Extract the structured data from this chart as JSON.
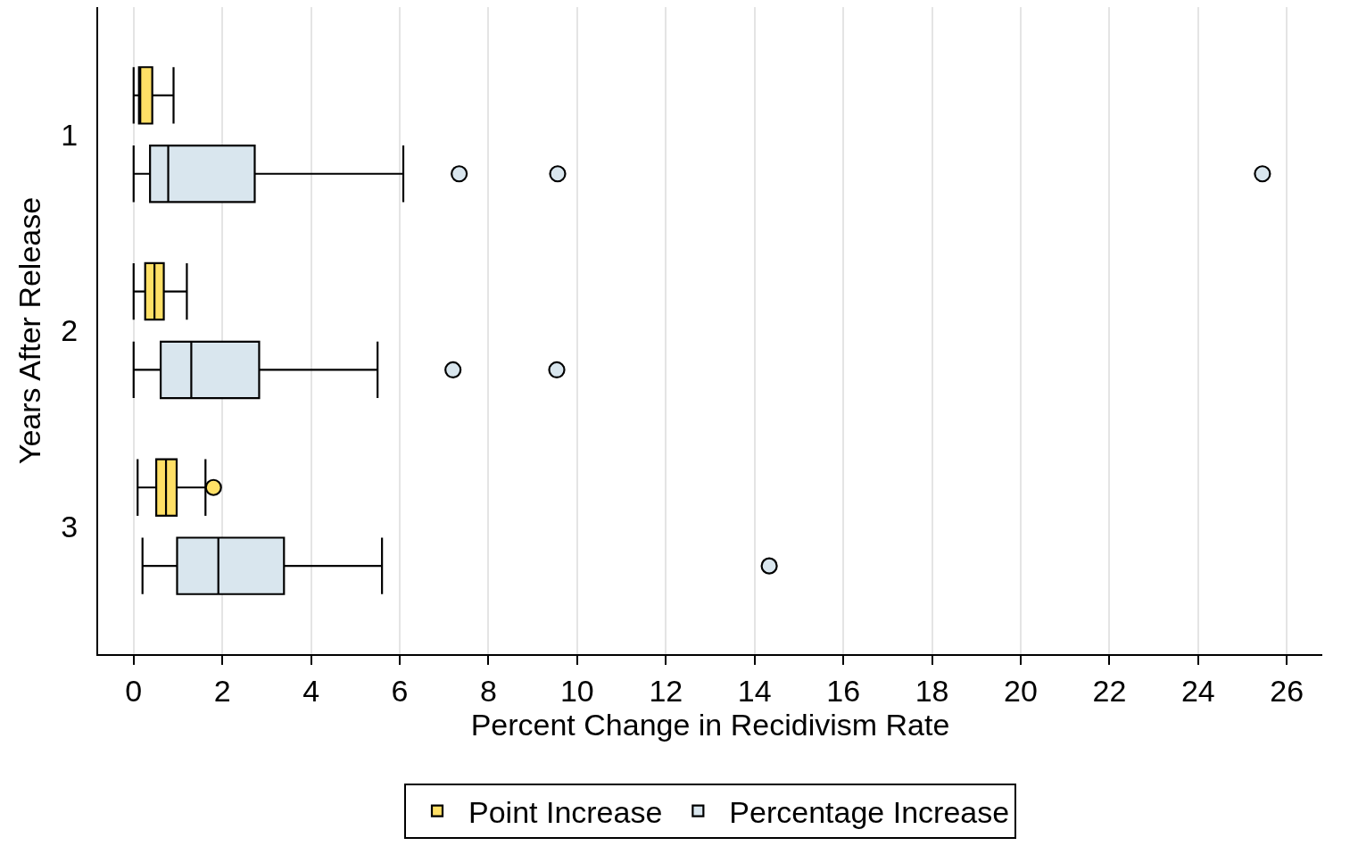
{
  "chart_data": {
    "type": "box",
    "orientation": "horizontal",
    "xlabel": "Percent Change in Recidivism Rate",
    "ylabel": "Years After Release",
    "categories": [
      "1",
      "2",
      "3"
    ],
    "xlim": [
      -0.8,
      26.8
    ],
    "xticks": [
      0,
      2,
      4,
      6,
      8,
      10,
      12,
      14,
      16,
      18,
      20,
      22,
      24,
      26
    ],
    "grid": "x",
    "legend": "bottom",
    "marker": "circle",
    "series": [
      {
        "name": "Point Increase",
        "color": "#ffe066",
        "boxes": [
          {
            "low": 0,
            "q1": 0.12,
            "median": 0.15,
            "q3": 0.42,
            "high": 0.9
          },
          {
            "low": 0,
            "q1": 0.26,
            "median": 0.47,
            "q3": 0.68,
            "high": 1.2
          },
          {
            "low": 0.09,
            "q1": 0.51,
            "median": 0.73,
            "q3": 0.97,
            "high": 1.62,
            "outliers": [
              1.8
            ]
          }
        ]
      },
      {
        "name": "Percentage Increase",
        "color": "#d9e6ee",
        "boxes": [
          {
            "low": 0,
            "q1": 0.37,
            "median": 0.78,
            "q3": 2.73,
            "high": 6.08,
            "outliers": [
              7.34,
              9.56,
              25.45
            ]
          },
          {
            "low": 0,
            "q1": 0.61,
            "median": 1.3,
            "q3": 2.83,
            "high": 5.5,
            "outliers": [
              7.2,
              9.54
            ]
          },
          {
            "low": 0.2,
            "q1": 0.98,
            "median": 1.91,
            "q3": 3.39,
            "high": 5.6,
            "outliers": [
              14.33
            ]
          }
        ]
      }
    ]
  }
}
